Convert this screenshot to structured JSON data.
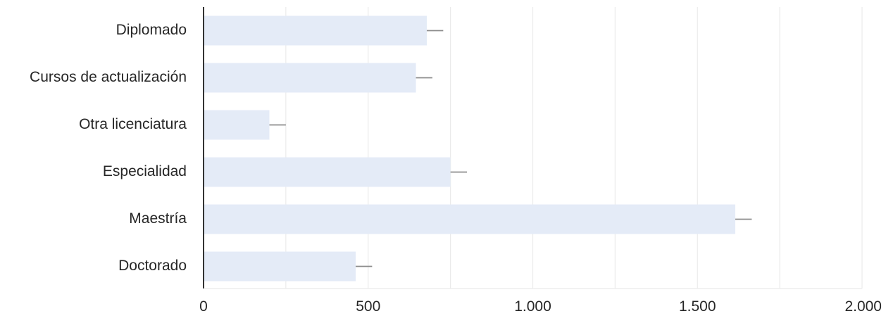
{
  "chart_data": {
    "type": "bar",
    "orientation": "horizontal",
    "categories": [
      "Diplomado",
      "Cursos de actualización",
      "Otra licenciatura",
      "Especialidad",
      "Maestría",
      "Doctorado"
    ],
    "values": [
      678,
      645,
      200,
      750,
      1615,
      462
    ],
    "error": [
      50,
      50,
      50,
      50,
      50,
      50
    ],
    "xlim": [
      0,
      2000
    ],
    "xticks": [
      0,
      500,
      1000,
      1500,
      2000
    ],
    "xtick_labels": [
      "0",
      "500",
      "1.000",
      "1.500",
      "2.000"
    ],
    "grid": true,
    "title": "",
    "xlabel": "",
    "ylabel": "",
    "colors": {
      "bar": "#e4ebf7",
      "error_bar": "#8c8c8c",
      "grid": "#ebebeb",
      "axis": "#333333",
      "text": "#262626"
    }
  }
}
